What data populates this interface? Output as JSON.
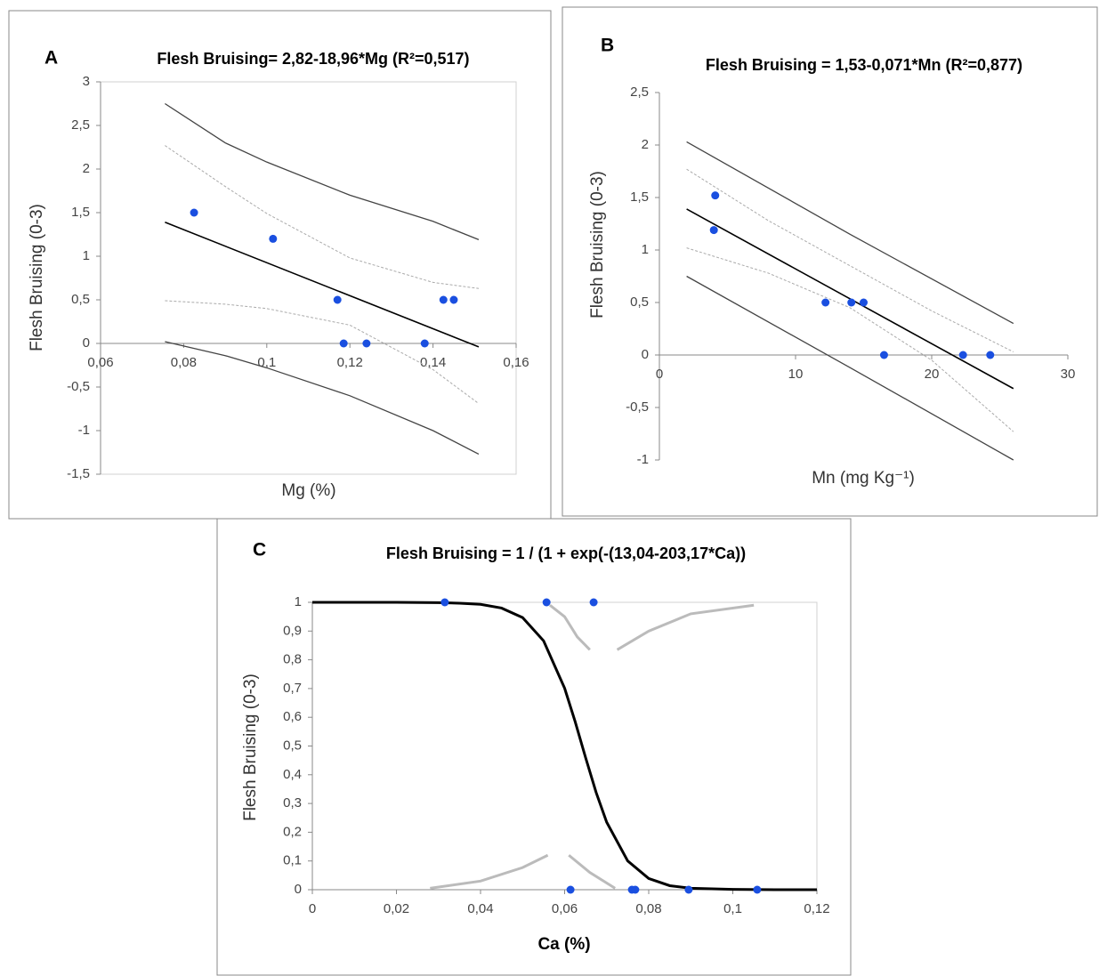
{
  "chart_data": [
    {
      "type": "scatter",
      "panel_label": "A",
      "title": "Flesh Bruising= 2,82-18,96*Mg  (R²=0,517)",
      "xlabel": "Mg (%)",
      "ylabel": "Flesh Bruising (0-3)",
      "xlim": [
        0.06,
        0.16
      ],
      "ylim": [
        -1.5,
        3
      ],
      "frame": true,
      "xticks": [
        {
          "value": 0.06,
          "label": "0,06"
        },
        {
          "value": 0.08,
          "label": "0,08"
        },
        {
          "value": 0.1,
          "label": "0,1"
        },
        {
          "value": 0.12,
          "label": "0,12"
        },
        {
          "value": 0.14,
          "label": "0,14"
        },
        {
          "value": 0.16,
          "label": "0,16"
        }
      ],
      "yticks": [
        3,
        {
          "value": 2.5,
          "label": "2,5"
        },
        2,
        {
          "value": 1.5,
          "label": "1,5"
        },
        1,
        {
          "value": 0.5,
          "label": "0,5"
        },
        0,
        {
          "value": -0.5,
          "label": "-0,5"
        },
        -1,
        {
          "value": -1.5,
          "label": "-1,5"
        }
      ],
      "series": [
        {
          "mark": "line",
          "color": "#444444",
          "dash": false,
          "x": [
            0.0755,
            0.09,
            0.1,
            0.12,
            0.14,
            0.151
          ],
          "values": [
            2.75,
            2.3,
            2.08,
            1.7,
            1.4,
            1.19
          ]
        },
        {
          "mark": "line",
          "color": "#444444",
          "dash": false,
          "x": [
            0.0755,
            0.09,
            0.1,
            0.12,
            0.14,
            0.151
          ],
          "values": [
            0.02,
            -0.14,
            -0.28,
            -0.6,
            -1.0,
            -1.27
          ]
        },
        {
          "mark": "line",
          "color": "#aaaaaa",
          "dash": true,
          "x": [
            0.0755,
            0.09,
            0.1,
            0.12,
            0.14,
            0.151
          ],
          "values": [
            2.27,
            1.8,
            1.49,
            0.98,
            0.7,
            0.63
          ]
        },
        {
          "mark": "line",
          "color": "#aaaaaa",
          "dash": true,
          "x": [
            0.0755,
            0.09,
            0.1,
            0.12,
            0.14,
            0.151
          ],
          "values": [
            0.49,
            0.45,
            0.4,
            0.21,
            -0.3,
            -0.69
          ]
        },
        {
          "mark": "line",
          "color": "#000000",
          "dash": false,
          "x": [
            0.0755,
            0.151
          ],
          "values": [
            1.39,
            -0.04
          ]
        },
        {
          "mark": "point",
          "color": "#1a4fe0",
          "x": [
            0.0825,
            0.1015,
            0.117,
            0.1185,
            0.124,
            0.138,
            0.1425,
            0.145
          ],
          "values": [
            1.5,
            1.2,
            0.5,
            0,
            0,
            0,
            0.5,
            0.5
          ]
        }
      ]
    },
    {
      "type": "scatter",
      "panel_label": "B",
      "title": "Flesh Bruising = 1,53-0,071*Mn (R²=0,877)",
      "xlabel": "Mn (mg Kg⁻¹)",
      "ylabel": "Flesh Bruising (0-3)",
      "xlim": [
        0,
        30
      ],
      "ylim": [
        -1,
        2.5
      ],
      "frame": false,
      "xticks": [
        0,
        10,
        20,
        30
      ],
      "yticks": [
        {
          "value": 2.5,
          "label": "2,5"
        },
        2,
        {
          "value": 1.5,
          "label": "1,5"
        },
        1,
        {
          "value": 0.5,
          "label": "0,5"
        },
        0,
        {
          "value": -0.5,
          "label": "-0,5"
        },
        -1
      ],
      "series": [
        {
          "mark": "line",
          "color": "#444444",
          "dash": false,
          "x": [
            2,
            14,
            26
          ],
          "values": [
            2.03,
            1.15,
            0.3
          ]
        },
        {
          "mark": "line",
          "color": "#444444",
          "dash": false,
          "x": [
            2,
            14,
            26
          ],
          "values": [
            0.75,
            -0.12,
            -1.0
          ]
        },
        {
          "mark": "line",
          "color": "#aaaaaa",
          "dash": true,
          "x": [
            2,
            8,
            14,
            20,
            26
          ],
          "values": [
            1.77,
            1.28,
            0.85,
            0.42,
            0.03
          ]
        },
        {
          "mark": "line",
          "color": "#aaaaaa",
          "dash": true,
          "x": [
            2,
            8,
            14,
            20,
            26
          ],
          "values": [
            1.02,
            0.78,
            0.45,
            -0.05,
            -0.73
          ]
        },
        {
          "mark": "line",
          "color": "#000000",
          "dash": false,
          "x": [
            2,
            26
          ],
          "values": [
            1.39,
            -0.32
          ]
        },
        {
          "mark": "point",
          "color": "#1a4fe0",
          "x": [
            4.1,
            4,
            12.2,
            14.1,
            15,
            16.5,
            22.3,
            24.3
          ],
          "values": [
            1.52,
            1.19,
            0.5,
            0.5,
            0.5,
            0,
            0,
            0
          ]
        }
      ]
    },
    {
      "type": "scatter",
      "panel_label": "C",
      "title": "Flesh Bruising = 1 / (1 + exp(-(13,04-203,17*Ca))",
      "xlabel": "Ca (%)",
      "ylabel": "Flesh Bruising (0-3)",
      "xlim": [
        0,
        0.12
      ],
      "ylim": [
        0,
        1
      ],
      "frame": true,
      "xticks": [
        0,
        {
          "value": 0.02,
          "label": "0,02"
        },
        {
          "value": 0.04,
          "label": "0,04"
        },
        {
          "value": 0.06,
          "label": "0,06"
        },
        {
          "value": 0.08,
          "label": "0,08"
        },
        {
          "value": 0.1,
          "label": "0,1"
        },
        {
          "value": 0.12,
          "label": "0,12"
        }
      ],
      "yticks": [
        1,
        {
          "value": 0.9,
          "label": "0,9"
        },
        {
          "value": 0.8,
          "label": "0,8"
        },
        {
          "value": 0.7,
          "label": "0,7"
        },
        {
          "value": 0.6,
          "label": "0,6"
        },
        {
          "value": 0.5,
          "label": "0,5"
        },
        {
          "value": 0.4,
          "label": "0,4"
        },
        {
          "value": 0.3,
          "label": "0,3"
        },
        {
          "value": 0.2,
          "label": "0,2"
        },
        {
          "value": 0.1,
          "label": "0,1"
        },
        0
      ],
      "series": [
        {
          "mark": "line",
          "color": "#bbbbbb",
          "dash": false,
          "x": [
            0.0565,
            0.06,
            0.063,
            0.066
          ],
          "values": [
            0.99,
            0.95,
            0.88,
            0.835
          ]
        },
        {
          "mark": "line",
          "color": "#bbbbbb",
          "dash": false,
          "x": [
            0.0725,
            0.08,
            0.09,
            0.105
          ],
          "values": [
            0.835,
            0.9,
            0.96,
            0.99
          ]
        },
        {
          "mark": "line",
          "color": "#bbbbbb",
          "dash": false,
          "x": [
            0.028,
            0.04,
            0.05,
            0.056
          ],
          "values": [
            0.005,
            0.03,
            0.077,
            0.12
          ]
        },
        {
          "mark": "line",
          "color": "#bbbbbb",
          "dash": false,
          "x": [
            0.061,
            0.066,
            0.072
          ],
          "values": [
            0.12,
            0.06,
            0.005
          ]
        },
        {
          "mark": "line",
          "color": "#000000",
          "dash": false,
          "x": [
            0,
            0.01,
            0.02,
            0.03,
            0.035,
            0.04,
            0.045,
            0.05,
            0.055,
            0.06,
            0.0625,
            0.065,
            0.0675,
            0.07,
            0.075,
            0.08,
            0.085,
            0.09,
            0.1,
            0.11,
            0.12
          ],
          "values": [
            1.0,
            1.0,
            1.0,
            0.999,
            0.997,
            0.993,
            0.98,
            0.947,
            0.866,
            0.701,
            0.585,
            0.459,
            0.338,
            0.235,
            0.1,
            0.039,
            0.014,
            0.005,
            0.001,
            0.0,
            0.0
          ]
        },
        {
          "mark": "point",
          "color": "#1a4fe0",
          "x": [
            0.0315,
            0.0557,
            0.0669,
            0.0614,
            0.076,
            0.0768,
            0.0895,
            0.1058
          ],
          "values": [
            1,
            1,
            1,
            0,
            0,
            0,
            0,
            0
          ]
        }
      ]
    }
  ]
}
